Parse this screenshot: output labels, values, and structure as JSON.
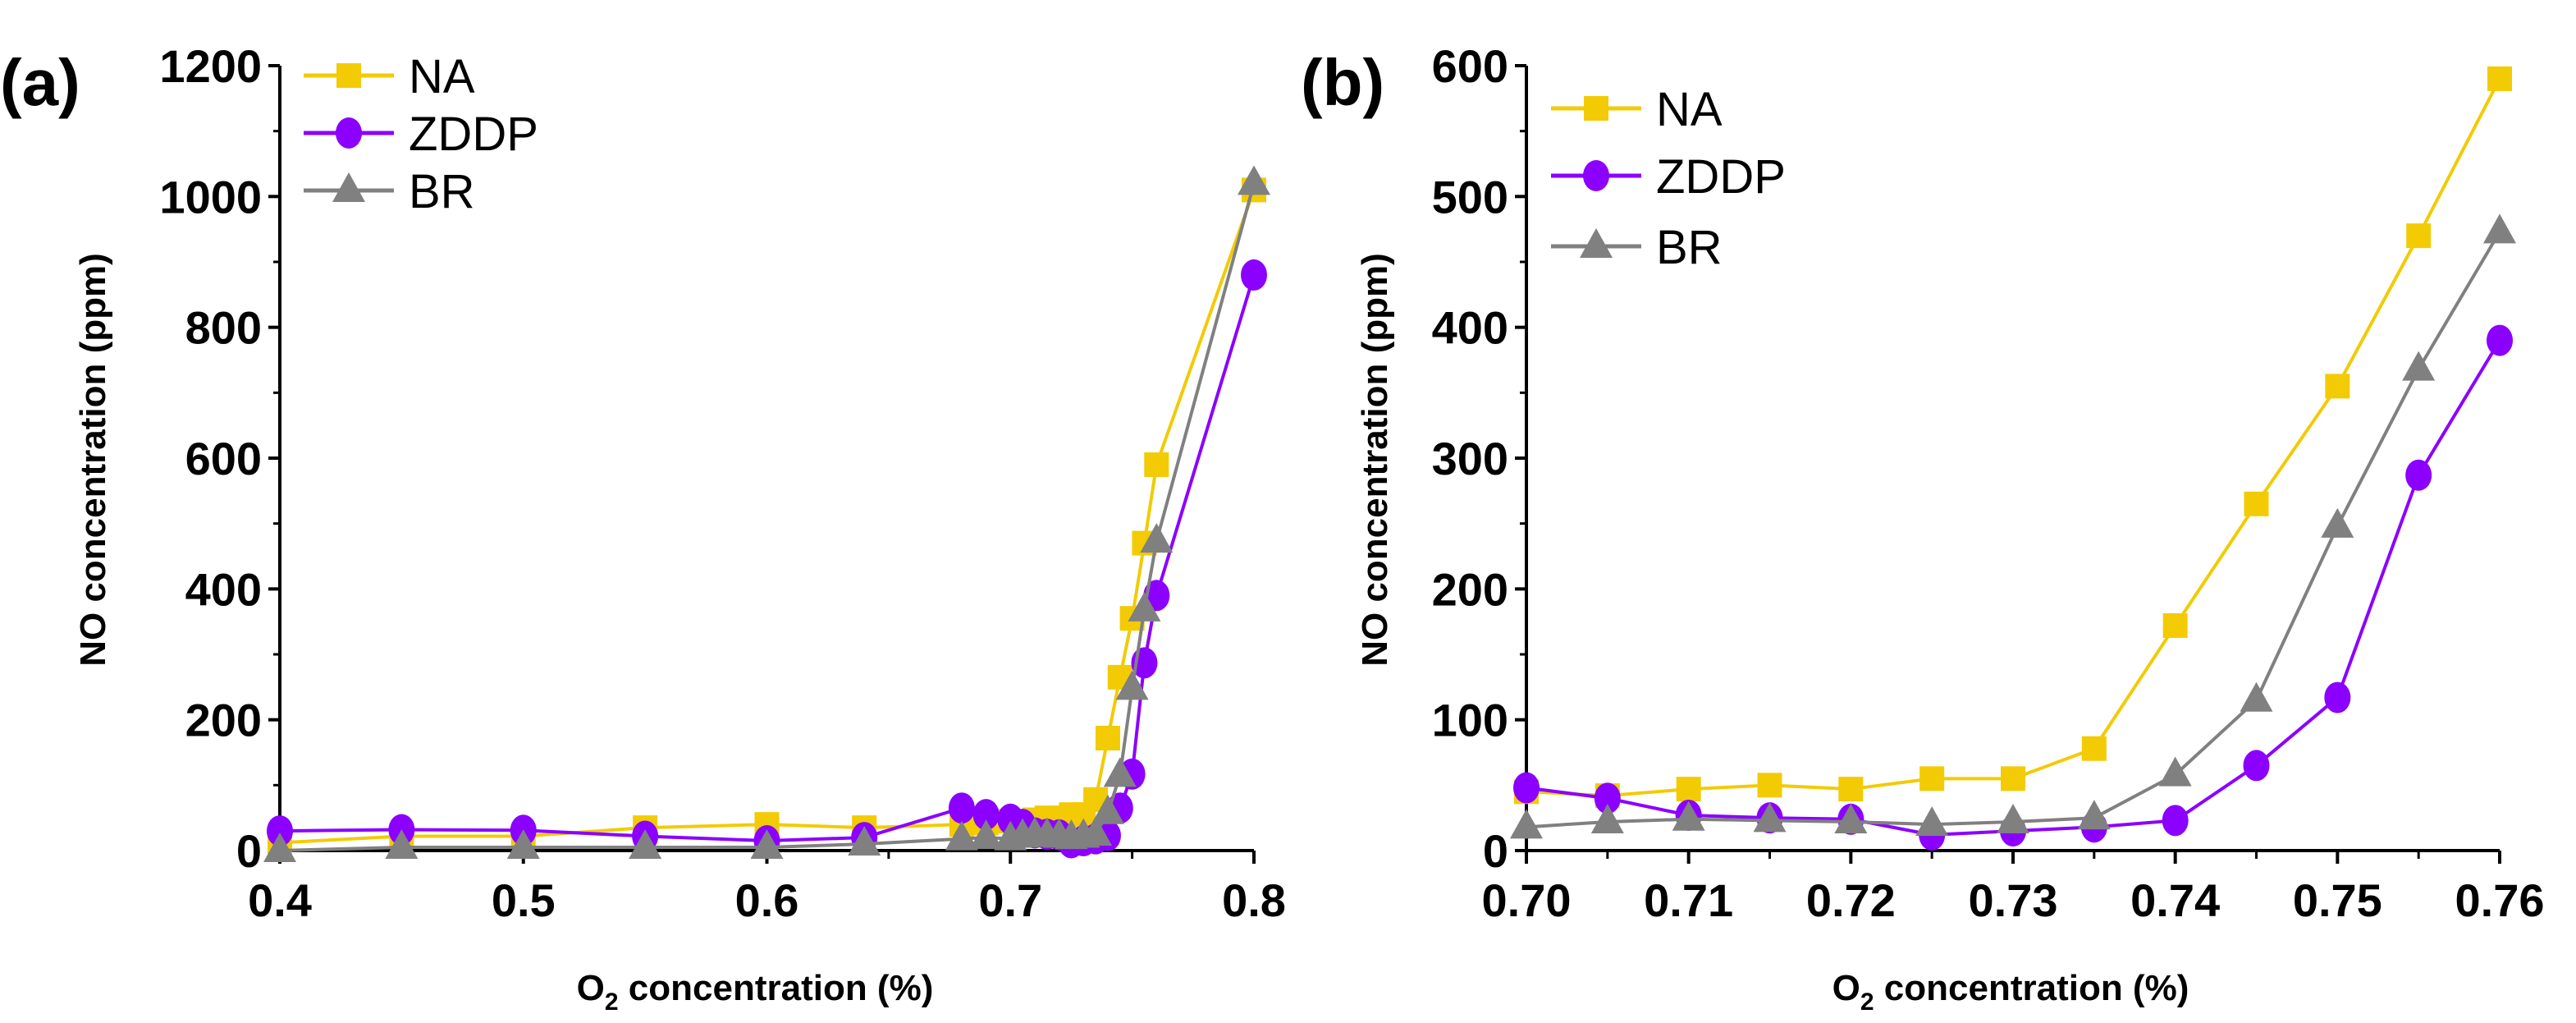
{
  "colors": {
    "NA": "#F2CB05",
    "ZDDP": "#8B00FF",
    "BR": "#808080"
  },
  "chart_data": [
    {
      "panel_label": "(a)",
      "type": "line",
      "xlabel_main": "O",
      "xlabel_sub": "2",
      "xlabel_rest": " concentration (%)",
      "ylabel": "NO concentration (ppm)",
      "xlim": [
        0.4,
        0.8
      ],
      "ylim": [
        0,
        1200
      ],
      "xticks": [
        "0.4",
        "0.5",
        "0.6",
        "0.7",
        "0.8"
      ],
      "xtick_values": [
        0.4,
        0.5,
        0.6,
        0.7,
        0.8
      ],
      "xminor": [
        0.45,
        0.55,
        0.65,
        0.75
      ],
      "yticks": [
        "0",
        "200",
        "400",
        "600",
        "800",
        "1000",
        "1200"
      ],
      "ytick_values": [
        0,
        200,
        400,
        600,
        800,
        1000,
        1200
      ],
      "yminor": [
        100,
        300,
        500,
        700,
        900,
        1100
      ],
      "legend": "top-left",
      "x": [
        0.4,
        0.45,
        0.5,
        0.55,
        0.6,
        0.64,
        0.68,
        0.69,
        0.7,
        0.705,
        0.71,
        0.715,
        0.72,
        0.725,
        0.73,
        0.735,
        0.74,
        0.745,
        0.75,
        0.755,
        0.76,
        0.8
      ],
      "series": [
        {
          "name": "NA",
          "marker": "square",
          "values": [
            12,
            22,
            22,
            35,
            40,
            35,
            40,
            42,
            45,
            42,
            47,
            50,
            47,
            55,
            55,
            78,
            172,
            265,
            355,
            470,
            590,
            1010
          ]
        },
        {
          "name": "ZDDP",
          "marker": "circle",
          "values": [
            30,
            32,
            31,
            22,
            15,
            20,
            65,
            55,
            48,
            40,
            27,
            25,
            24,
            12,
            15,
            18,
            23,
            65,
            117,
            287,
            390,
            880
          ]
        },
        {
          "name": "BR",
          "marker": "triangle",
          "values": [
            0,
            5,
            5,
            5,
            5,
            10,
            18,
            20,
            18,
            22,
            24,
            23,
            22,
            20,
            22,
            25,
            58,
            115,
            248,
            368,
            473,
            1020
          ]
        }
      ]
    },
    {
      "panel_label": "(b)",
      "type": "line",
      "xlabel_main": "O",
      "xlabel_sub": "2",
      "xlabel_rest": " concentration (%)",
      "ylabel": "NO concentration (ppm)",
      "xlim": [
        0.7,
        0.76
      ],
      "ylim": [
        0,
        600
      ],
      "xticks": [
        "0.70",
        "0.71",
        "0.72",
        "0.73",
        "0.74",
        "0.75",
        "0.76"
      ],
      "xtick_values": [
        0.7,
        0.71,
        0.72,
        0.73,
        0.74,
        0.75,
        0.76
      ],
      "xminor": [
        0.705,
        0.715,
        0.725,
        0.735,
        0.745,
        0.755
      ],
      "yticks": [
        "0",
        "100",
        "200",
        "300",
        "400",
        "500",
        "600"
      ],
      "ytick_values": [
        0,
        100,
        200,
        300,
        400,
        500,
        600
      ],
      "yminor": [
        50,
        150,
        250,
        350,
        450,
        550
      ],
      "legend": "top-left",
      "x": [
        0.7,
        0.705,
        0.71,
        0.715,
        0.72,
        0.725,
        0.73,
        0.735,
        0.74,
        0.745,
        0.75,
        0.755,
        0.76
      ],
      "series": [
        {
          "name": "NA",
          "marker": "square",
          "values": [
            45,
            42,
            47,
            50,
            47,
            55,
            55,
            78,
            172,
            265,
            355,
            470,
            590
          ]
        },
        {
          "name": "ZDDP",
          "marker": "circle",
          "values": [
            48,
            40,
            27,
            25,
            24,
            12,
            15,
            18,
            23,
            65,
            117,
            287,
            390
          ]
        },
        {
          "name": "BR",
          "marker": "triangle",
          "values": [
            18,
            22,
            24,
            23,
            22,
            20,
            22,
            25,
            58,
            115,
            248,
            368,
            473
          ]
        }
      ]
    }
  ]
}
